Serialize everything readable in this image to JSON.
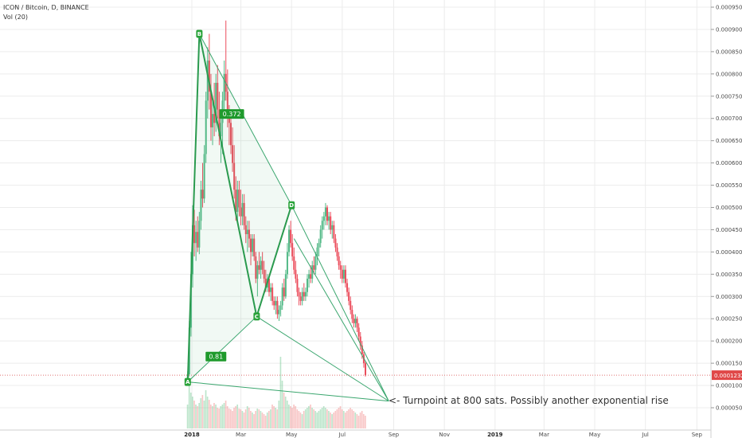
{
  "chart_data": {
    "type": "candlestick",
    "title": "ICON / Bitcoin, D, BINANCE",
    "indicator": "Vol (20)",
    "y_axis": {
      "min": 2.72e-05,
      "max": 9.7e-05,
      "position": "right",
      "ticks": [
        "0.0000500",
        "0.0001000",
        "0.0001500",
        "0.0002000",
        "0.0002500",
        "0.0003000",
        "0.0003500",
        "0.0004000",
        "0.0004500",
        "0.0005000",
        "0.0005500",
        "0.0006000",
        "0.0006500",
        "0.0007000",
        "0.0007500",
        "0.0008000",
        "0.0008500",
        "0.0009000",
        "0.0009500"
      ],
      "tick_values": [
        5e-05,
        0.0001,
        0.00015,
        0.0002,
        0.00025,
        0.0003,
        0.00035,
        0.0004,
        0.00045,
        0.0005,
        0.00055,
        0.0006,
        0.00065,
        0.0007,
        0.00075,
        0.0008,
        0.00085,
        0.0009,
        0.00095
      ]
    },
    "x_axis": {
      "ticks": [
        {
          "label": "2018",
          "month_index": 0,
          "bold": true
        },
        {
          "label": "Mar",
          "month_index": 2,
          "bold": false
        },
        {
          "label": "May",
          "month_index": 4,
          "bold": false
        },
        {
          "label": "Jul",
          "month_index": 6,
          "bold": false
        },
        {
          "label": "Sep",
          "month_index": 8,
          "bold": false
        },
        {
          "label": "Nov",
          "month_index": 10,
          "bold": false
        },
        {
          "label": "2019",
          "month_index": 12,
          "bold": true
        },
        {
          "label": "Mar",
          "month_index": 14,
          "bold": false
        },
        {
          "label": "May",
          "month_index": 16,
          "bold": false
        },
        {
          "label": "Jul",
          "month_index": 18,
          "bold": false
        },
        {
          "label": "Sep",
          "month_index": 20,
          "bold": false
        }
      ]
    },
    "current_price": {
      "value": 0.0001232,
      "label": "0.0001232"
    },
    "pattern_points": [
      {
        "name": "A",
        "date": "2017-12-27",
        "price": 0.000108
      },
      {
        "name": "B",
        "date": "2018-01-10",
        "price": 0.00089
      },
      {
        "name": "C",
        "date": "2018-03-20",
        "price": 0.000255
      },
      {
        "name": "D",
        "date": "2018-05-01",
        "price": 0.000505
      },
      {
        "name": "",
        "date": "2018-08-26",
        "price": 6.5e-05
      }
    ],
    "ratios": [
      {
        "label": "0.372",
        "date": "2018-02-18",
        "price": 0.00071
      },
      {
        "label": "0.81",
        "date": "2018-01-30",
        "price": 0.000165
      }
    ],
    "annotation": "<- Turnpoint at 800 sats. Possibly another exponential rise",
    "candles": [
      {
        "date": "2017-12-26",
        "o": 0.000108,
        "h": 0.000132,
        "l": 0.0001,
        "c": 0.000125
      },
      {
        "date": "2017-12-27",
        "o": 0.000125,
        "h": 0.000245,
        "l": 0.00012,
        "c": 0.00023
      },
      {
        "date": "2017-12-28",
        "o": 0.00023,
        "h": 0.0004,
        "l": 0.00021,
        "c": 0.00035
      },
      {
        "date": "2017-12-29",
        "o": 0.00035,
        "h": 0.000505,
        "l": 0.00032,
        "c": 0.00046
      },
      {
        "date": "2017-12-30",
        "o": 0.00046,
        "h": 0.000495,
        "l": 0.00039,
        "c": 0.00042
      },
      {
        "date": "2017-12-31",
        "o": 0.00042,
        "h": 0.00047,
        "l": 0.00038,
        "c": 0.000445
      },
      {
        "date": "2018-01-01",
        "o": 0.000445,
        "h": 0.00048,
        "l": 0.0004,
        "c": 0.00041
      },
      {
        "date": "2018-01-02",
        "o": 0.00041,
        "h": 0.00049,
        "l": 0.000395,
        "c": 0.00047
      },
      {
        "date": "2018-01-03",
        "o": 0.00047,
        "h": 0.00056,
        "l": 0.00045,
        "c": 0.00054
      },
      {
        "date": "2018-01-04",
        "o": 0.00054,
        "h": 0.0006,
        "l": 0.0005,
        "c": 0.00052
      },
      {
        "date": "2018-01-05",
        "o": 0.00052,
        "h": 0.00064,
        "l": 0.00051,
        "c": 0.00062
      },
      {
        "date": "2018-01-06",
        "o": 0.00062,
        "h": 0.00076,
        "l": 0.0006,
        "c": 0.00074
      },
      {
        "date": "2018-01-07",
        "o": 0.00074,
        "h": 0.00086,
        "l": 0.0007,
        "c": 0.00083
      },
      {
        "date": "2018-01-08",
        "o": 0.00083,
        "h": 0.00089,
        "l": 0.00072,
        "c": 0.00076
      },
      {
        "date": "2018-01-09",
        "o": 0.00076,
        "h": 0.0008,
        "l": 0.00065,
        "c": 0.00068
      },
      {
        "date": "2018-01-10",
        "o": 0.00068,
        "h": 0.00074,
        "l": 0.00064,
        "c": 0.00071
      },
      {
        "date": "2018-01-11",
        "o": 0.00071,
        "h": 0.00078,
        "l": 0.00066,
        "c": 0.00069
      },
      {
        "date": "2018-01-12",
        "o": 0.00069,
        "h": 0.0008,
        "l": 0.00067,
        "c": 0.00078
      },
      {
        "date": "2018-01-13",
        "o": 0.00078,
        "h": 0.00082,
        "l": 0.0007,
        "c": 0.00072
      },
      {
        "date": "2018-01-14",
        "o": 0.00072,
        "h": 0.00076,
        "l": 0.00064,
        "c": 0.00066
      },
      {
        "date": "2018-01-15",
        "o": 0.00066,
        "h": 0.0007,
        "l": 0.0006,
        "c": 0.00069
      },
      {
        "date": "2018-01-16",
        "o": 0.00069,
        "h": 0.00076,
        "l": 0.00062,
        "c": 0.00074
      },
      {
        "date": "2018-01-17",
        "o": 0.00074,
        "h": 0.00083,
        "l": 0.00072,
        "c": 0.0008
      },
      {
        "date": "2018-01-18",
        "o": 0.0008,
        "h": 0.00092,
        "l": 0.00074,
        "c": 0.00076
      },
      {
        "date": "2018-01-19",
        "o": 0.00076,
        "h": 0.00081,
        "l": 0.00068,
        "c": 0.0007
      },
      {
        "date": "2018-01-20",
        "o": 0.0007,
        "h": 0.00073,
        "l": 0.00064,
        "c": 0.00069
      },
      {
        "date": "2018-01-21",
        "o": 0.00069,
        "h": 0.00072,
        "l": 0.00062,
        "c": 0.00064
      },
      {
        "date": "2018-01-22",
        "o": 0.00064,
        "h": 0.00068,
        "l": 0.00058,
        "c": 0.0006
      },
      {
        "date": "2018-01-23",
        "o": 0.0006,
        "h": 0.00064,
        "l": 0.00052,
        "c": 0.00054
      },
      {
        "date": "2018-01-24",
        "o": 0.00054,
        "h": 0.00057,
        "l": 0.00047,
        "c": 0.00049
      },
      {
        "date": "2018-01-25",
        "o": 0.00049,
        "h": 0.00056,
        "l": 0.00047,
        "c": 0.00054
      },
      {
        "date": "2018-01-26",
        "o": 0.00054,
        "h": 0.00056,
        "l": 0.00048,
        "c": 0.0005
      },
      {
        "date": "2018-01-27",
        "o": 0.0005,
        "h": 0.00054,
        "l": 0.00046,
        "c": 0.00048
      },
      {
        "date": "2018-01-28",
        "o": 0.00048,
        "h": 0.00053,
        "l": 0.00046,
        "c": 0.00051
      },
      {
        "date": "2018-01-29",
        "o": 0.00051,
        "h": 0.00053,
        "l": 0.00045,
        "c": 0.00046
      },
      {
        "date": "2018-01-30",
        "o": 0.00046,
        "h": 0.00048,
        "l": 0.00042,
        "c": 0.00044
      },
      {
        "date": "2018-01-31",
        "o": 0.00044,
        "h": 0.00047,
        "l": 0.0004,
        "c": 0.00045
      },
      {
        "date": "2018-02-01",
        "o": 0.00045,
        "h": 0.00047,
        "l": 0.00041,
        "c": 0.00043
      },
      {
        "date": "2018-02-02",
        "o": 0.00043,
        "h": 0.00044,
        "l": 0.00037,
        "c": 0.0004
      },
      {
        "date": "2018-02-03",
        "o": 0.0004,
        "h": 0.00044,
        "l": 0.00039,
        "c": 0.00043
      },
      {
        "date": "2018-02-04",
        "o": 0.00043,
        "h": 0.00044,
        "l": 0.00038,
        "c": 0.00039
      },
      {
        "date": "2018-02-05",
        "o": 0.00039,
        "h": 0.0004,
        "l": 0.00033,
        "c": 0.00034
      },
      {
        "date": "2018-02-06",
        "o": 0.00034,
        "h": 0.00038,
        "l": 0.0003,
        "c": 0.00037
      },
      {
        "date": "2018-02-07",
        "o": 0.00037,
        "h": 0.0004,
        "l": 0.00035,
        "c": 0.00036
      },
      {
        "date": "2018-02-08",
        "o": 0.00036,
        "h": 0.00039,
        "l": 0.00034,
        "c": 0.00038
      },
      {
        "date": "2018-02-09",
        "o": 0.00038,
        "h": 0.0004,
        "l": 0.00035,
        "c": 0.00036
      },
      {
        "date": "2018-02-10",
        "o": 0.00036,
        "h": 0.00038,
        "l": 0.00033,
        "c": 0.00034
      },
      {
        "date": "2018-02-11",
        "o": 0.00034,
        "h": 0.00036,
        "l": 0.00031,
        "c": 0.00032
      },
      {
        "date": "2018-02-12",
        "o": 0.00032,
        "h": 0.00035,
        "l": 0.00031,
        "c": 0.00034
      },
      {
        "date": "2018-02-13",
        "o": 0.00034,
        "h": 0.00035,
        "l": 0.0003,
        "c": 0.00031
      },
      {
        "date": "2018-02-14",
        "o": 0.00031,
        "h": 0.00033,
        "l": 0.00029,
        "c": 0.00032
      },
      {
        "date": "2018-02-15",
        "o": 0.00032,
        "h": 0.00033,
        "l": 0.00028,
        "c": 0.00029
      },
      {
        "date": "2018-02-16",
        "o": 0.00029,
        "h": 0.0003,
        "l": 0.00027,
        "c": 0.00028
      },
      {
        "date": "2018-02-17",
        "o": 0.00028,
        "h": 0.0003,
        "l": 0.00026,
        "c": 0.00029
      },
      {
        "date": "2018-02-18",
        "o": 0.00029,
        "h": 0.0003,
        "l": 0.00025,
        "c": 0.00026
      },
      {
        "date": "2018-02-19",
        "o": 0.00026,
        "h": 0.00028,
        "l": 0.000245,
        "c": 0.00027
      },
      {
        "date": "2018-02-20",
        "o": 0.00027,
        "h": 0.00029,
        "l": 0.000255,
        "c": 0.00028
      },
      {
        "date": "2018-02-21",
        "o": 0.00028,
        "h": 0.00033,
        "l": 0.00027,
        "c": 0.00032
      },
      {
        "date": "2018-02-22",
        "o": 0.00032,
        "h": 0.00034,
        "l": 0.00029,
        "c": 0.0003
      },
      {
        "date": "2018-02-23",
        "o": 0.0003,
        "h": 0.00036,
        "l": 0.000295,
        "c": 0.00035
      },
      {
        "date": "2018-02-24",
        "o": 0.00035,
        "h": 0.00042,
        "l": 0.00034,
        "c": 0.0004
      },
      {
        "date": "2018-02-25",
        "o": 0.0004,
        "h": 0.00046,
        "l": 0.00039,
        "c": 0.00045
      },
      {
        "date": "2018-02-26",
        "o": 0.00045,
        "h": 0.00047,
        "l": 0.00041,
        "c": 0.00042
      },
      {
        "date": "2018-02-27",
        "o": 0.00042,
        "h": 0.00044,
        "l": 0.00038,
        "c": 0.00039
      },
      {
        "date": "2018-02-28",
        "o": 0.00039,
        "h": 0.00041,
        "l": 0.00035,
        "c": 0.00036
      },
      {
        "date": "2018-03-01",
        "o": 0.00036,
        "h": 0.00038,
        "l": 0.00033,
        "c": 0.00034
      },
      {
        "date": "2018-03-02",
        "o": 0.00034,
        "h": 0.00035,
        "l": 0.0003,
        "c": 0.00031
      },
      {
        "date": "2018-03-03",
        "o": 0.00031,
        "h": 0.00032,
        "l": 0.00028,
        "c": 0.0003
      },
      {
        "date": "2018-03-04",
        "o": 0.0003,
        "h": 0.00031,
        "l": 0.00028,
        "c": 0.00029
      },
      {
        "date": "2018-03-05",
        "o": 0.00029,
        "h": 0.00032,
        "l": 0.00028,
        "c": 0.00031
      },
      {
        "date": "2018-03-06",
        "o": 0.00031,
        "h": 0.00033,
        "l": 0.00029,
        "c": 0.0003
      },
      {
        "date": "2018-03-07",
        "o": 0.0003,
        "h": 0.00032,
        "l": 0.00029,
        "c": 0.00031
      },
      {
        "date": "2018-03-08",
        "o": 0.00031,
        "h": 0.00035,
        "l": 0.0003,
        "c": 0.00034
      },
      {
        "date": "2018-03-09",
        "o": 0.00034,
        "h": 0.00036,
        "l": 0.00032,
        "c": 0.00035
      },
      {
        "date": "2018-03-10",
        "o": 0.00035,
        "h": 0.00037,
        "l": 0.00033,
        "c": 0.00034
      },
      {
        "date": "2018-03-11",
        "o": 0.00034,
        "h": 0.00038,
        "l": 0.00033,
        "c": 0.00037
      },
      {
        "date": "2018-03-12",
        "o": 0.00037,
        "h": 0.00039,
        "l": 0.00035,
        "c": 0.00036
      },
      {
        "date": "2018-03-13",
        "o": 0.00036,
        "h": 0.0004,
        "l": 0.00035,
        "c": 0.00039
      },
      {
        "date": "2018-03-14",
        "o": 0.00039,
        "h": 0.00042,
        "l": 0.00037,
        "c": 0.00041
      },
      {
        "date": "2018-03-15",
        "o": 0.00041,
        "h": 0.00043,
        "l": 0.00039,
        "c": 0.00042
      },
      {
        "date": "2018-03-16",
        "o": 0.00042,
        "h": 0.00046,
        "l": 0.00041,
        "c": 0.00045
      },
      {
        "date": "2018-03-17",
        "o": 0.00045,
        "h": 0.00048,
        "l": 0.00043,
        "c": 0.00047
      },
      {
        "date": "2018-03-18",
        "o": 0.00047,
        "h": 0.00049,
        "l": 0.00045,
        "c": 0.00048
      },
      {
        "date": "2018-03-19",
        "o": 0.00048,
        "h": 0.00051,
        "l": 0.00046,
        "c": 0.0005
      },
      {
        "date": "2018-03-20",
        "o": 0.0005,
        "h": 0.000505,
        "l": 0.00046,
        "c": 0.00047
      },
      {
        "date": "2018-03-21",
        "o": 0.00047,
        "h": 0.00049,
        "l": 0.00045,
        "c": 0.00048
      },
      {
        "date": "2018-03-22",
        "o": 0.00048,
        "h": 0.00049,
        "l": 0.00044,
        "c": 0.00045
      },
      {
        "date": "2018-03-23",
        "o": 0.00045,
        "h": 0.00047,
        "l": 0.00043,
        "c": 0.00046
      },
      {
        "date": "2018-03-24",
        "o": 0.00046,
        "h": 0.00047,
        "l": 0.00042,
        "c": 0.00043
      },
      {
        "date": "2018-03-25",
        "o": 0.00043,
        "h": 0.00044,
        "l": 0.0004,
        "c": 0.00041
      },
      {
        "date": "2018-03-26",
        "o": 0.00041,
        "h": 0.00042,
        "l": 0.00038,
        "c": 0.00039
      },
      {
        "date": "2018-03-27",
        "o": 0.00039,
        "h": 0.0004,
        "l": 0.00036,
        "c": 0.00037
      },
      {
        "date": "2018-03-28",
        "o": 0.00037,
        "h": 0.00038,
        "l": 0.00034,
        "c": 0.00036
      },
      {
        "date": "2018-03-29",
        "o": 0.00036,
        "h": 0.00037,
        "l": 0.00033,
        "c": 0.00034
      },
      {
        "date": "2018-03-30",
        "o": 0.00034,
        "h": 0.00037,
        "l": 0.00033,
        "c": 0.00036
      },
      {
        "date": "2018-03-31",
        "o": 0.00036,
        "h": 0.00037,
        "l": 0.00032,
        "c": 0.00033
      },
      {
        "date": "2018-04-01",
        "o": 0.00033,
        "h": 0.00034,
        "l": 0.0003,
        "c": 0.00031
      },
      {
        "date": "2018-04-02",
        "o": 0.00031,
        "h": 0.00032,
        "l": 0.00028,
        "c": 0.00029
      },
      {
        "date": "2018-04-03",
        "o": 0.00029,
        "h": 0.0003,
        "l": 0.00026,
        "c": 0.00027
      },
      {
        "date": "2018-04-04",
        "o": 0.00027,
        "h": 0.00028,
        "l": 0.00024,
        "c": 0.00025
      },
      {
        "date": "2018-04-05",
        "o": 0.00025,
        "h": 0.00026,
        "l": 0.00023,
        "c": 0.00024
      },
      {
        "date": "2018-04-06",
        "o": 0.00024,
        "h": 0.00026,
        "l": 0.00023,
        "c": 0.00025
      },
      {
        "date": "2018-04-07",
        "o": 0.00025,
        "h": 0.000255,
        "l": 0.00022,
        "c": 0.00023
      },
      {
        "date": "2018-04-08",
        "o": 0.00023,
        "h": 0.00024,
        "l": 0.0002,
        "c": 0.00021
      },
      {
        "date": "2018-04-09",
        "o": 0.00021,
        "h": 0.00022,
        "l": 0.00018,
        "c": 0.00019
      },
      {
        "date": "2018-04-10",
        "o": 0.00019,
        "h": 0.0002,
        "l": 0.00016,
        "c": 0.00017
      },
      {
        "date": "2018-04-11",
        "o": 0.00017,
        "h": 0.000175,
        "l": 0.00014,
        "c": 0.00015
      },
      {
        "date": "2018-04-12",
        "o": 0.00015,
        "h": 0.000155,
        "l": 0.00012,
        "c": 0.000123
      }
    ],
    "volume": {
      "label": "Vol (20)",
      "values": [
        30,
        55,
        45,
        40,
        35,
        30,
        28,
        32,
        38,
        42,
        35,
        48,
        40,
        36,
        30,
        28,
        32,
        30,
        26,
        25,
        28,
        30,
        32,
        35,
        28,
        25,
        24,
        22,
        26,
        28,
        30,
        25,
        24,
        22,
        20,
        24,
        28,
        26,
        22,
        20,
        18,
        22,
        25,
        24,
        22,
        20,
        18,
        16,
        20,
        22,
        24,
        30,
        28,
        26,
        24,
        35,
        90,
        60,
        45,
        40,
        35,
        30,
        28,
        26,
        30,
        28,
        24,
        22,
        20,
        18,
        22,
        24,
        26,
        28,
        30,
        26,
        24,
        22,
        20,
        22,
        24,
        26,
        28,
        26,
        24,
        22,
        20,
        18,
        20,
        22,
        24,
        26,
        28,
        24,
        22,
        20,
        22,
        24,
        26,
        24,
        22,
        20,
        18,
        16,
        20,
        22,
        18,
        16
      ]
    }
  }
}
